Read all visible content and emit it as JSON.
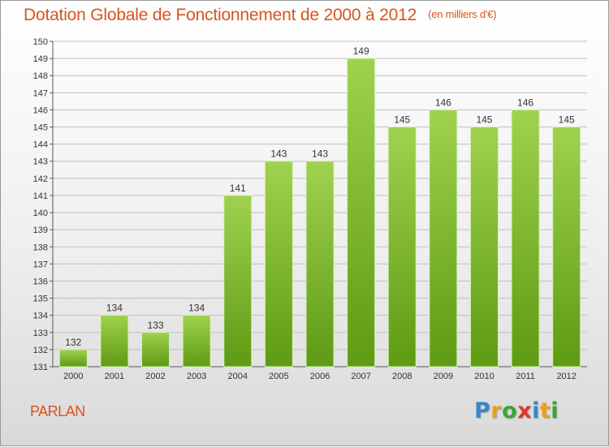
{
  "header": {
    "title": "Dotation Globale de Fonctionnement de 2000 à 2012",
    "unit": "(en milliers d'€)"
  },
  "footer": {
    "commune": "PARLAN",
    "logo": [
      "P",
      "r",
      "o",
      "x",
      "i",
      "t",
      "i"
    ]
  },
  "colors": {
    "title": "#d9531e",
    "bar_top": "#9fd24f",
    "bar_bottom": "#5e9a13",
    "grid": "#bfbfbf"
  },
  "chart_data": {
    "type": "bar",
    "title": "Dotation Globale de Fonctionnement de 2000 à 2012",
    "xlabel": "",
    "ylabel": "",
    "categories": [
      "2000",
      "2001",
      "2002",
      "2003",
      "2004",
      "2005",
      "2006",
      "2007",
      "2008",
      "2009",
      "2010",
      "2011",
      "2012"
    ],
    "values": [
      132,
      134,
      133,
      134,
      141,
      143,
      143,
      149,
      145,
      146,
      145,
      146,
      145
    ],
    "ylim": [
      131,
      150
    ],
    "yticks": [
      131,
      132,
      133,
      134,
      135,
      136,
      137,
      138,
      139,
      140,
      141,
      142,
      143,
      144,
      145,
      146,
      147,
      148,
      149,
      150
    ],
    "grid": true,
    "legend": "none"
  }
}
